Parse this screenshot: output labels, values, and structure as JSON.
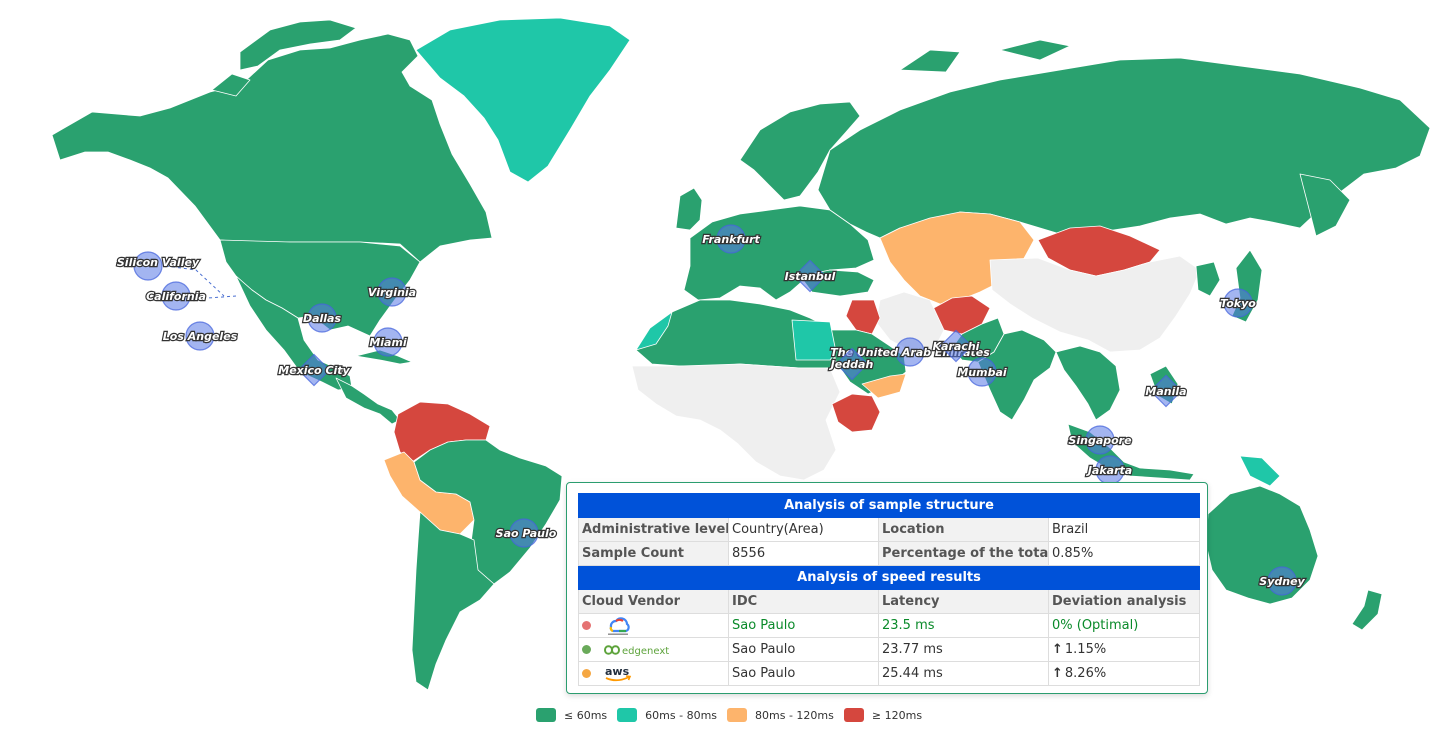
{
  "legend": [
    {
      "label": "≤ 60ms",
      "color": "#2aa16f"
    },
    {
      "label": "60ms - 80ms",
      "color": "#1fc7a8"
    },
    {
      "label": "80ms - 120ms",
      "color": "#fdb46c"
    },
    {
      "label": "≥ 120ms",
      "color": "#d5473e"
    }
  ],
  "no_data_color": "#efefef",
  "map": {
    "cities": [
      {
        "name": "Silicon Valley",
        "marker": "circle"
      },
      {
        "name": "California",
        "marker": "circle"
      },
      {
        "name": "Los Angeles",
        "marker": "circle"
      },
      {
        "name": "Dallas",
        "marker": "circle"
      },
      {
        "name": "Virginia",
        "marker": "circle"
      },
      {
        "name": "Miami",
        "marker": "circle"
      },
      {
        "name": "Mexico City",
        "marker": "diamond"
      },
      {
        "name": "Sao Paulo",
        "marker": "circle"
      },
      {
        "name": "Frankfurt",
        "marker": "circle"
      },
      {
        "name": "Istanbul",
        "marker": "diamond"
      },
      {
        "name": "The United Arab Emirates",
        "marker": "circle"
      },
      {
        "name": "Jeddah",
        "marker": "diamond"
      },
      {
        "name": "Karachi",
        "marker": "diamond"
      },
      {
        "name": "Mumbai",
        "marker": "circle"
      },
      {
        "name": "Singapore",
        "marker": "circle"
      },
      {
        "name": "Jakarta",
        "marker": "circle"
      },
      {
        "name": "Manila",
        "marker": "diamond"
      },
      {
        "name": "Tokyo",
        "marker": "circle"
      },
      {
        "name": "Sydney",
        "marker": "circle"
      }
    ]
  },
  "tooltip": {
    "structure_title": "Analysis of sample structure",
    "admin_level_label": "Administrative level",
    "admin_level_value": "Country(Area)",
    "location_label": "Location",
    "location_value": "Brazil",
    "sample_count_label": "Sample Count",
    "sample_count_value": "8556",
    "percentage_label": "Percentage of the total",
    "percentage_value": "0.85%",
    "speed_title": "Analysis of speed results",
    "headers": [
      "Cloud Vendor",
      "IDC",
      "Latency",
      "Deviation analysis"
    ],
    "rows": [
      {
        "vendor": "Google Cloud",
        "dot": "#e57373",
        "idc": "Sao Paulo",
        "latency": "23.5 ms",
        "deviation": "0%  (Optimal)",
        "arrow": ""
      },
      {
        "vendor": "edgenext",
        "dot": "#6aaa5a",
        "idc": "Sao Paulo",
        "latency": "23.77 ms",
        "deviation": "1.15%",
        "arrow": "↑"
      },
      {
        "vendor": "aws",
        "dot": "#f5a742",
        "idc": "Sao Paulo",
        "latency": "25.44 ms",
        "deviation": "8.26%",
        "arrow": "↑"
      }
    ]
  }
}
